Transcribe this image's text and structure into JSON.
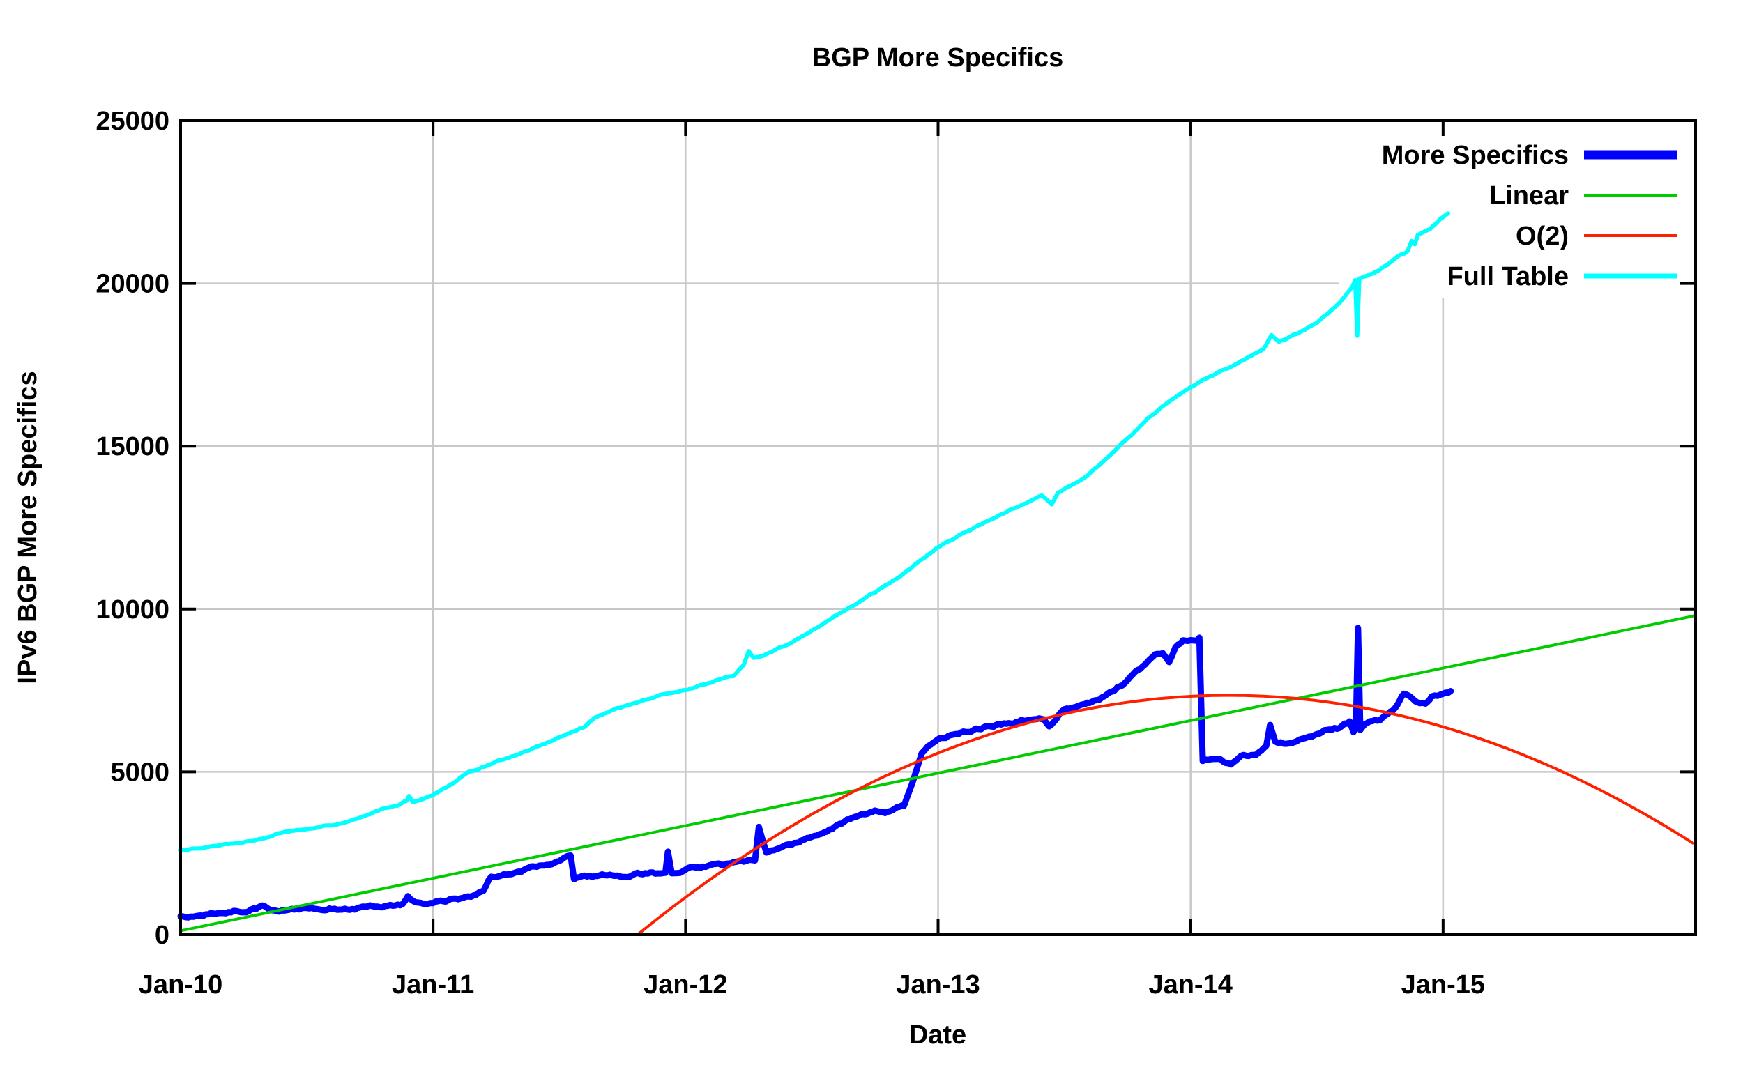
{
  "title": "BGP More Specifics",
  "axes": {
    "x": {
      "label": "Date",
      "tick_labels": [
        "Jan-10",
        "Jan-11",
        "Jan-12",
        "Jan-13",
        "Jan-14",
        "Jan-15"
      ],
      "tick_positions_years": [
        0,
        1,
        2,
        3,
        4,
        5
      ],
      "range_years": [
        0,
        6
      ]
    },
    "y": {
      "label": "IPv6 BGP More Specifics",
      "tick_values": [
        0,
        5000,
        10000,
        15000,
        20000,
        25000
      ],
      "range": [
        0,
        25000
      ]
    }
  },
  "legend": {
    "position": "top-right-inside",
    "entries": [
      {
        "label": "More Specifics",
        "color": "#0000ff",
        "sample_stroke": 13
      },
      {
        "label": "Linear",
        "color": "#00cc00",
        "sample_stroke": 4
      },
      {
        "label": "O(2)",
        "color": "#ff2000",
        "sample_stroke": 4
      },
      {
        "label": "Full Table",
        "color": "#00ffff",
        "sample_stroke": 7
      }
    ]
  },
  "colors": {
    "background": "#ffffff",
    "border": "#000000",
    "grid": "#c8c8c8",
    "more_specifics": "#0000ff",
    "linear": "#00cc00",
    "o2": "#ff2000",
    "full_table": "#00ffff"
  },
  "chart_data": {
    "type": "line",
    "title": "BGP More Specifics",
    "xlabel": "Date",
    "ylabel": "IPv6 BGP More Specifics",
    "x_unit": "years_since_Jan-2010",
    "xlim_years": [
      0,
      6
    ],
    "ylim": [
      0,
      25000
    ],
    "grid": true,
    "legend_position": "top-right",
    "series": [
      {
        "name": "More Specifics",
        "color": "#0000ff",
        "stroke": 9,
        "noise_amp": 45,
        "points": [
          [
            0.0,
            550
          ],
          [
            0.05,
            590
          ],
          [
            0.1,
            630
          ],
          [
            0.15,
            660
          ],
          [
            0.2,
            700
          ],
          [
            0.27,
            760
          ],
          [
            0.3,
            800
          ],
          [
            0.33,
            880
          ],
          [
            0.36,
            760
          ],
          [
            0.4,
            740
          ],
          [
            0.45,
            770
          ],
          [
            0.5,
            800
          ],
          [
            0.58,
            830
          ],
          [
            0.66,
            800
          ],
          [
            0.75,
            870
          ],
          [
            0.83,
            930
          ],
          [
            0.88,
            950
          ],
          [
            0.9,
            1200
          ],
          [
            0.93,
            1000
          ],
          [
            1.0,
            1000
          ],
          [
            1.08,
            1090
          ],
          [
            1.12,
            1100
          ],
          [
            1.17,
            1220
          ],
          [
            1.2,
            1350
          ],
          [
            1.23,
            1780
          ],
          [
            1.3,
            1880
          ],
          [
            1.4,
            2100
          ],
          [
            1.48,
            2230
          ],
          [
            1.52,
            2400
          ],
          [
            1.545,
            2430
          ],
          [
            1.558,
            1700
          ],
          [
            1.62,
            1760
          ],
          [
            1.7,
            1800
          ],
          [
            1.8,
            1850
          ],
          [
            1.88,
            1880
          ],
          [
            1.92,
            1900
          ],
          [
            1.93,
            2550
          ],
          [
            1.945,
            1920
          ],
          [
            2.0,
            2030
          ],
          [
            2.08,
            2120
          ],
          [
            2.16,
            2170
          ],
          [
            2.24,
            2230
          ],
          [
            2.275,
            2280
          ],
          [
            2.29,
            3310
          ],
          [
            2.305,
            2900
          ],
          [
            2.32,
            2550
          ],
          [
            2.36,
            2630
          ],
          [
            2.42,
            2750
          ],
          [
            2.5,
            3020
          ],
          [
            2.58,
            3280
          ],
          [
            2.66,
            3560
          ],
          [
            2.72,
            3700
          ],
          [
            2.76,
            3760
          ],
          [
            2.79,
            3690
          ],
          [
            2.83,
            3820
          ],
          [
            2.865,
            3960
          ],
          [
            2.9,
            4700
          ],
          [
            2.935,
            5580
          ],
          [
            2.96,
            5820
          ],
          [
            3.0,
            6060
          ],
          [
            3.08,
            6200
          ],
          [
            3.16,
            6330
          ],
          [
            3.25,
            6480
          ],
          [
            3.33,
            6580
          ],
          [
            3.42,
            6650
          ],
          [
            3.44,
            6420
          ],
          [
            3.46,
            6560
          ],
          [
            3.49,
            6900
          ],
          [
            3.54,
            7000
          ],
          [
            3.58,
            7080
          ],
          [
            3.62,
            7180
          ],
          [
            3.67,
            7350
          ],
          [
            3.72,
            7650
          ],
          [
            3.77,
            7950
          ],
          [
            3.82,
            8250
          ],
          [
            3.86,
            8520
          ],
          [
            3.89,
            8620
          ],
          [
            3.915,
            8370
          ],
          [
            3.94,
            8800
          ],
          [
            3.97,
            9020
          ],
          [
            4.0,
            9070
          ],
          [
            4.035,
            9120
          ],
          [
            4.048,
            5310
          ],
          [
            4.1,
            5400
          ],
          [
            4.16,
            5230
          ],
          [
            4.2,
            5450
          ],
          [
            4.26,
            5550
          ],
          [
            4.3,
            5800
          ],
          [
            4.315,
            6440
          ],
          [
            4.335,
            5900
          ],
          [
            4.38,
            5870
          ],
          [
            4.44,
            6000
          ],
          [
            4.5,
            6150
          ],
          [
            4.54,
            6300
          ],
          [
            4.58,
            6350
          ],
          [
            4.61,
            6500
          ],
          [
            4.63,
            6550
          ],
          [
            4.645,
            6230
          ],
          [
            4.655,
            6380
          ],
          [
            4.663,
            9420
          ],
          [
            4.672,
            6300
          ],
          [
            4.7,
            6500
          ],
          [
            4.75,
            6600
          ],
          [
            4.81,
            6940
          ],
          [
            4.845,
            7400
          ],
          [
            4.87,
            7300
          ],
          [
            4.9,
            7150
          ],
          [
            4.93,
            7100
          ],
          [
            4.955,
            7350
          ],
          [
            5.0,
            7400
          ],
          [
            5.03,
            7480
          ]
        ]
      },
      {
        "name": "Linear",
        "color": "#00cc00",
        "stroke": 4,
        "noise_amp": 0,
        "points": [
          [
            0,
            120
          ],
          [
            6,
            9800
          ]
        ]
      },
      {
        "name": "O(2)",
        "color": "#ff2000",
        "stroke": 4,
        "noise_amp": 0,
        "parabola": {
          "peak_value": 7350,
          "peak_t": 4.15,
          "curvature": 1342,
          "clip_min": 0
        }
      },
      {
        "name": "Full Table",
        "color": "#00ffff",
        "stroke": 6,
        "noise_amp": 22,
        "points": [
          [
            0.0,
            2590
          ],
          [
            0.1,
            2680
          ],
          [
            0.2,
            2790
          ],
          [
            0.3,
            2900
          ],
          [
            0.41,
            3170
          ],
          [
            0.5,
            3250
          ],
          [
            0.58,
            3350
          ],
          [
            0.665,
            3450
          ],
          [
            0.75,
            3700
          ],
          [
            0.8,
            3850
          ],
          [
            0.86,
            3950
          ],
          [
            0.895,
            4100
          ],
          [
            0.905,
            4250
          ],
          [
            0.92,
            4050
          ],
          [
            0.96,
            4150
          ],
          [
            1.0,
            4290
          ],
          [
            1.07,
            4600
          ],
          [
            1.14,
            5000
          ],
          [
            1.25,
            5300
          ],
          [
            1.36,
            5600
          ],
          [
            1.44,
            5850
          ],
          [
            1.5,
            6050
          ],
          [
            1.56,
            6250
          ],
          [
            1.6,
            6380
          ],
          [
            1.64,
            6660
          ],
          [
            1.7,
            6850
          ],
          [
            1.78,
            7050
          ],
          [
            1.86,
            7250
          ],
          [
            1.93,
            7400
          ],
          [
            2.0,
            7500
          ],
          [
            2.07,
            7690
          ],
          [
            2.14,
            7840
          ],
          [
            2.19,
            7940
          ],
          [
            2.23,
            8280
          ],
          [
            2.25,
            8710
          ],
          [
            2.27,
            8520
          ],
          [
            2.33,
            8660
          ],
          [
            2.42,
            8960
          ],
          [
            2.5,
            9350
          ],
          [
            2.58,
            9750
          ],
          [
            2.67,
            10160
          ],
          [
            2.75,
            10510
          ],
          [
            2.83,
            10910
          ],
          [
            2.92,
            11420
          ],
          [
            3.0,
            11900
          ],
          [
            3.08,
            12260
          ],
          [
            3.17,
            12610
          ],
          [
            3.25,
            12910
          ],
          [
            3.33,
            13210
          ],
          [
            3.41,
            13490
          ],
          [
            3.45,
            13210
          ],
          [
            3.475,
            13560
          ],
          [
            3.58,
            14030
          ],
          [
            3.67,
            14620
          ],
          [
            3.75,
            15230
          ],
          [
            3.83,
            15840
          ],
          [
            3.9,
            16280
          ],
          [
            3.93,
            16440
          ],
          [
            4.0,
            16820
          ],
          [
            4.08,
            17180
          ],
          [
            4.17,
            17490
          ],
          [
            4.25,
            17810
          ],
          [
            4.29,
            18010
          ],
          [
            4.32,
            18420
          ],
          [
            4.35,
            18230
          ],
          [
            4.42,
            18440
          ],
          [
            4.5,
            18800
          ],
          [
            4.57,
            19250
          ],
          [
            4.6,
            19500
          ],
          [
            4.64,
            19900
          ],
          [
            4.652,
            20100
          ],
          [
            4.66,
            18390
          ],
          [
            4.668,
            20150
          ],
          [
            4.72,
            20300
          ],
          [
            4.78,
            20600
          ],
          [
            4.83,
            20900
          ],
          [
            4.86,
            21000
          ],
          [
            4.875,
            21300
          ],
          [
            4.888,
            21200
          ],
          [
            4.9,
            21500
          ],
          [
            4.95,
            21700
          ],
          [
            4.99,
            22000
          ],
          [
            5.02,
            22150
          ]
        ]
      }
    ]
  }
}
